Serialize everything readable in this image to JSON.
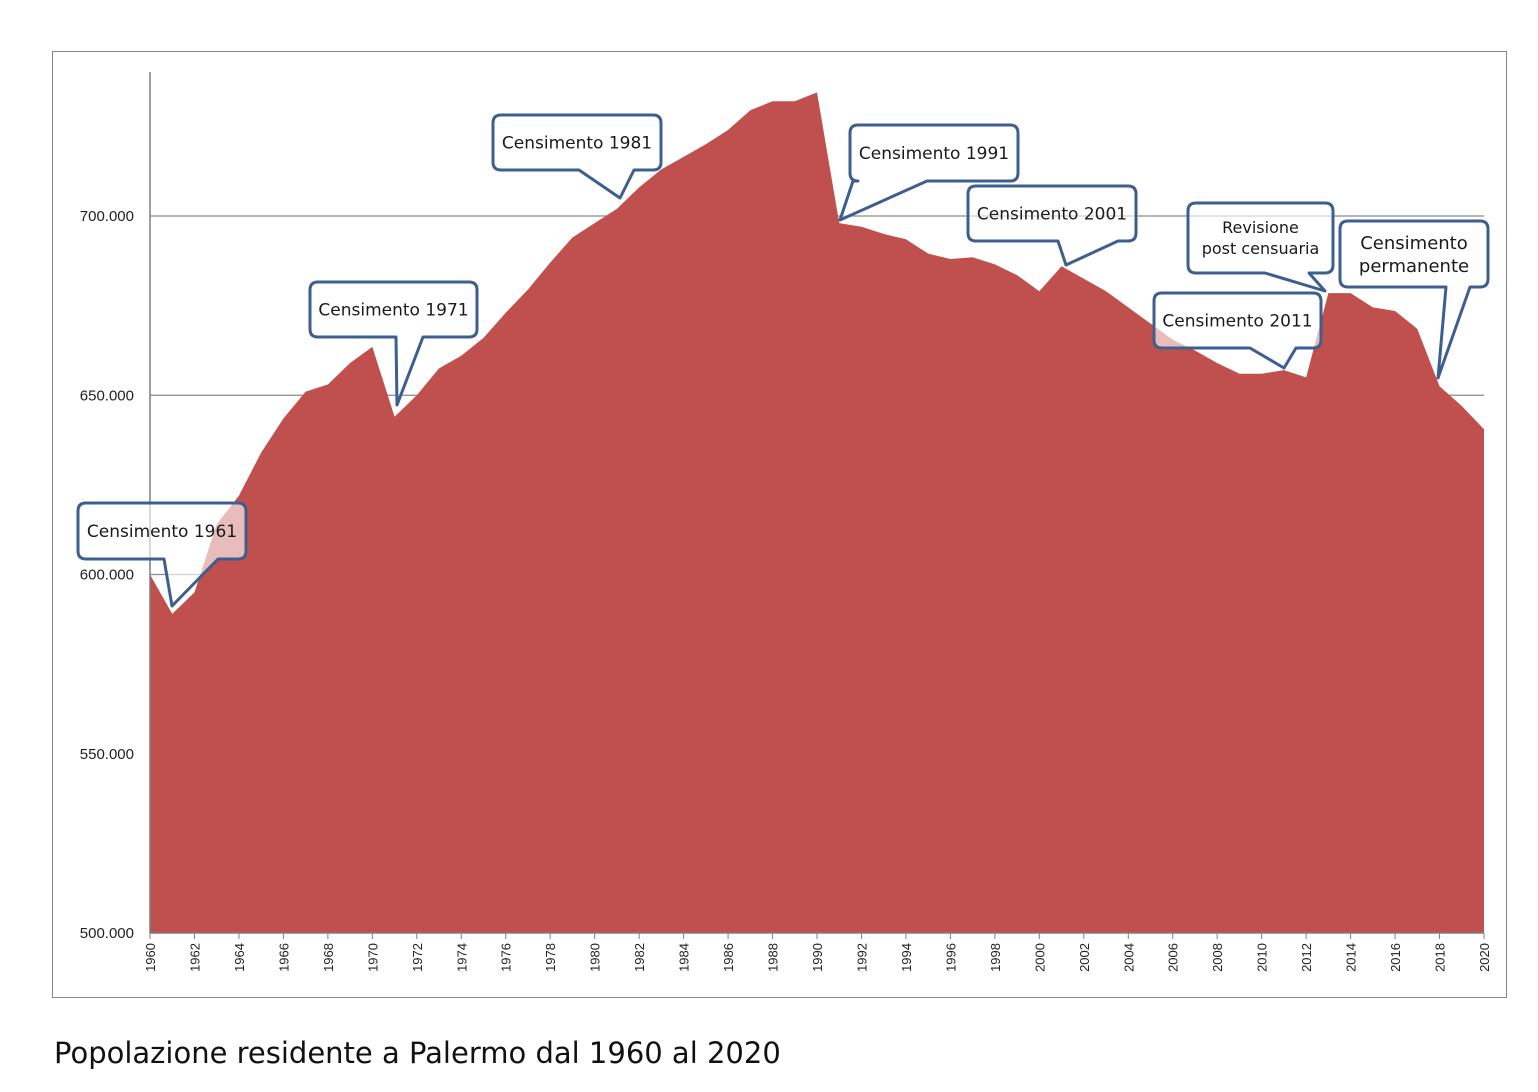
{
  "chart_data": {
    "type": "area",
    "title": "Popolazione residente a Palermo dal 1960 al 2020",
    "xlabel": "",
    "ylabel": "",
    "ylim": [
      500000,
      740000
    ],
    "xlim": [
      1960,
      2020
    ],
    "grid": true,
    "fill_color": "#C0504D",
    "years": [
      1960,
      1961,
      1962,
      1963,
      1964,
      1965,
      1966,
      1967,
      1968,
      1969,
      1970,
      1971,
      1972,
      1973,
      1974,
      1975,
      1976,
      1977,
      1978,
      1979,
      1980,
      1981,
      1982,
      1983,
      1984,
      1985,
      1986,
      1987,
      1988,
      1989,
      1990,
      1991,
      1992,
      1993,
      1994,
      1995,
      1996,
      1997,
      1998,
      1999,
      2000,
      2001,
      2002,
      2003,
      2004,
      2005,
      2006,
      2007,
      2008,
      2009,
      2010,
      2011,
      2012,
      2013,
      2014,
      2015,
      2016,
      2017,
      2018,
      2019,
      2020
    ],
    "values": [
      600000,
      589000,
      595000,
      614000,
      622000,
      634000,
      643500,
      651000,
      653000,
      659000,
      663500,
      644000,
      650000,
      657500,
      661000,
      666000,
      673000,
      679500,
      687000,
      694000,
      698000,
      702000,
      708000,
      713000,
      716500,
      720000,
      724000,
      729500,
      732000,
      732000,
      734500,
      698000,
      697000,
      695000,
      693500,
      689500,
      688000,
      688500,
      686500,
      683500,
      679000,
      686000,
      682500,
      679000,
      674500,
      670000,
      665500,
      662500,
      659000,
      656000,
      656000,
      657000,
      655000,
      678500,
      678500,
      674500,
      673500,
      668500,
      652500,
      647000,
      640500
    ],
    "y_ticks": [
      {
        "value": 500000,
        "label": "500.000"
      },
      {
        "value": 550000,
        "label": "550.000"
      },
      {
        "value": 600000,
        "label": "600.000"
      },
      {
        "value": 650000,
        "label": "650.000"
      },
      {
        "value": 700000,
        "label": "700.000"
      }
    ],
    "x_ticks": [
      "1960",
      "1962",
      "1964",
      "1966",
      "1968",
      "1970",
      "1972",
      "1974",
      "1976",
      "1978",
      "1980",
      "1982",
      "1984",
      "1986",
      "1988",
      "1990",
      "1992",
      "1994",
      "1996",
      "1998",
      "2000",
      "2002",
      "2004",
      "2006",
      "2008",
      "2010",
      "2012",
      "2014",
      "2016",
      "2018",
      "2020"
    ],
    "annotations": [
      {
        "lines": [
          "Censimento 1961"
        ],
        "year": 1961
      },
      {
        "lines": [
          "Censimento 1971"
        ],
        "year": 1971
      },
      {
        "lines": [
          "Censimento 1981"
        ],
        "year": 1981
      },
      {
        "lines": [
          "Censimento 1991"
        ],
        "year": 1991
      },
      {
        "lines": [
          "Censimento 2001"
        ],
        "year": 2001
      },
      {
        "lines": [
          "Revisione",
          "post censuaria"
        ],
        "year": 2013
      },
      {
        "lines": [
          "Censimento 2011"
        ],
        "year": 2011
      },
      {
        "lines": [
          "Censimento",
          "permanente"
        ],
        "year": 2018
      }
    ]
  }
}
